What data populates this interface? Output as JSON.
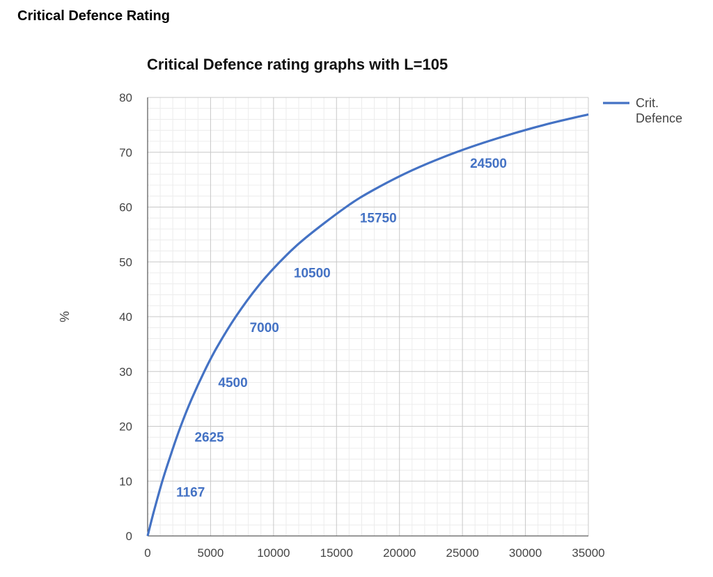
{
  "page": {
    "heading": "Critical Defence Rating"
  },
  "chart_data": {
    "type": "line",
    "title": "Critical Defence rating graphs with L=105",
    "xlabel": "",
    "ylabel": "%",
    "xlim": [
      0,
      35000
    ],
    "ylim": [
      0,
      80
    ],
    "x_ticks": [
      0,
      5000,
      10000,
      15000,
      20000,
      25000,
      30000,
      35000
    ],
    "y_ticks": [
      0,
      10,
      20,
      30,
      40,
      50,
      60,
      70,
      80
    ],
    "grid": true,
    "legend_position": "top-right",
    "line_color": "#4472c4",
    "series": [
      {
        "name": "Crit. Defence",
        "x": [
          0,
          500,
          1167,
          1750,
          2625,
          3500,
          4500,
          5500,
          7000,
          8750,
          10500,
          12500,
          15750,
          18000,
          21000,
          24500,
          28000,
          31500,
          35000
        ],
        "y": [
          0,
          4.5,
          10,
          14.2,
          20,
          25,
          30,
          34.4,
          40,
          45.5,
          50,
          54.3,
          60,
          63.2,
          66.7,
          70,
          72.7,
          75,
          76.9
        ]
      }
    ],
    "annotations": [
      {
        "text": "1167",
        "x": 1167,
        "y": 10
      },
      {
        "text": "2625",
        "x": 2625,
        "y": 20
      },
      {
        "text": "4500",
        "x": 4500,
        "y": 30
      },
      {
        "text": "7000",
        "x": 7000,
        "y": 40
      },
      {
        "text": "10500",
        "x": 10500,
        "y": 50
      },
      {
        "text": "15750",
        "x": 15750,
        "y": 60
      },
      {
        "text": "24500",
        "x": 24500,
        "y": 70
      }
    ]
  }
}
